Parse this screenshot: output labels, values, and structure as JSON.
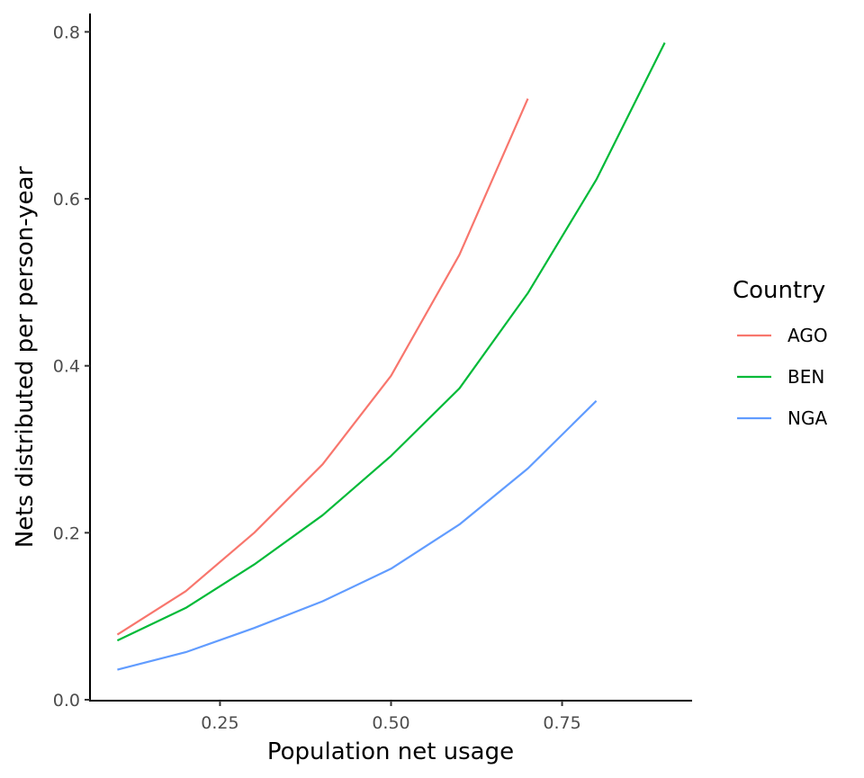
{
  "chart_data": {
    "type": "line",
    "title": "",
    "xlabel": "Population net usage",
    "ylabel": "Nets distributed per person-year",
    "xlim": [
      0.06,
      0.94
    ],
    "ylim": [
      -0.0011,
      0.822
    ],
    "x_ticks": [
      {
        "value": 0.25,
        "label": "0.25"
      },
      {
        "value": 0.5,
        "label": "0.50"
      },
      {
        "value": 0.75,
        "label": "0.75"
      }
    ],
    "y_ticks": [
      {
        "value": 0.0,
        "label": "0.0"
      },
      {
        "value": 0.2,
        "label": "0.2"
      },
      {
        "value": 0.4,
        "label": "0.4"
      },
      {
        "value": 0.6,
        "label": "0.6"
      },
      {
        "value": 0.8,
        "label": "0.8"
      }
    ],
    "grid": false,
    "legend": {
      "title": "Country",
      "position": "right"
    },
    "series": [
      {
        "name": "AGO",
        "color": "#F8766D",
        "x": [
          0.1,
          0.2,
          0.3,
          0.4,
          0.5,
          0.6,
          0.7
        ],
        "y": [
          0.078,
          0.13,
          0.2,
          0.282,
          0.388,
          0.533,
          0.72
        ]
      },
      {
        "name": "BEN",
        "color": "#00BA38",
        "x": [
          0.1,
          0.2,
          0.3,
          0.4,
          0.5,
          0.6,
          0.7,
          0.8,
          0.9
        ],
        "y": [
          0.071,
          0.11,
          0.162,
          0.221,
          0.292,
          0.373,
          0.487,
          0.623,
          0.787
        ]
      },
      {
        "name": "NGA",
        "color": "#619CFF",
        "x": [
          0.1,
          0.2,
          0.3,
          0.4,
          0.5,
          0.6,
          0.7,
          0.8
        ],
        "y": [
          0.036,
          0.057,
          0.086,
          0.118,
          0.157,
          0.21,
          0.277,
          0.358
        ]
      }
    ]
  }
}
